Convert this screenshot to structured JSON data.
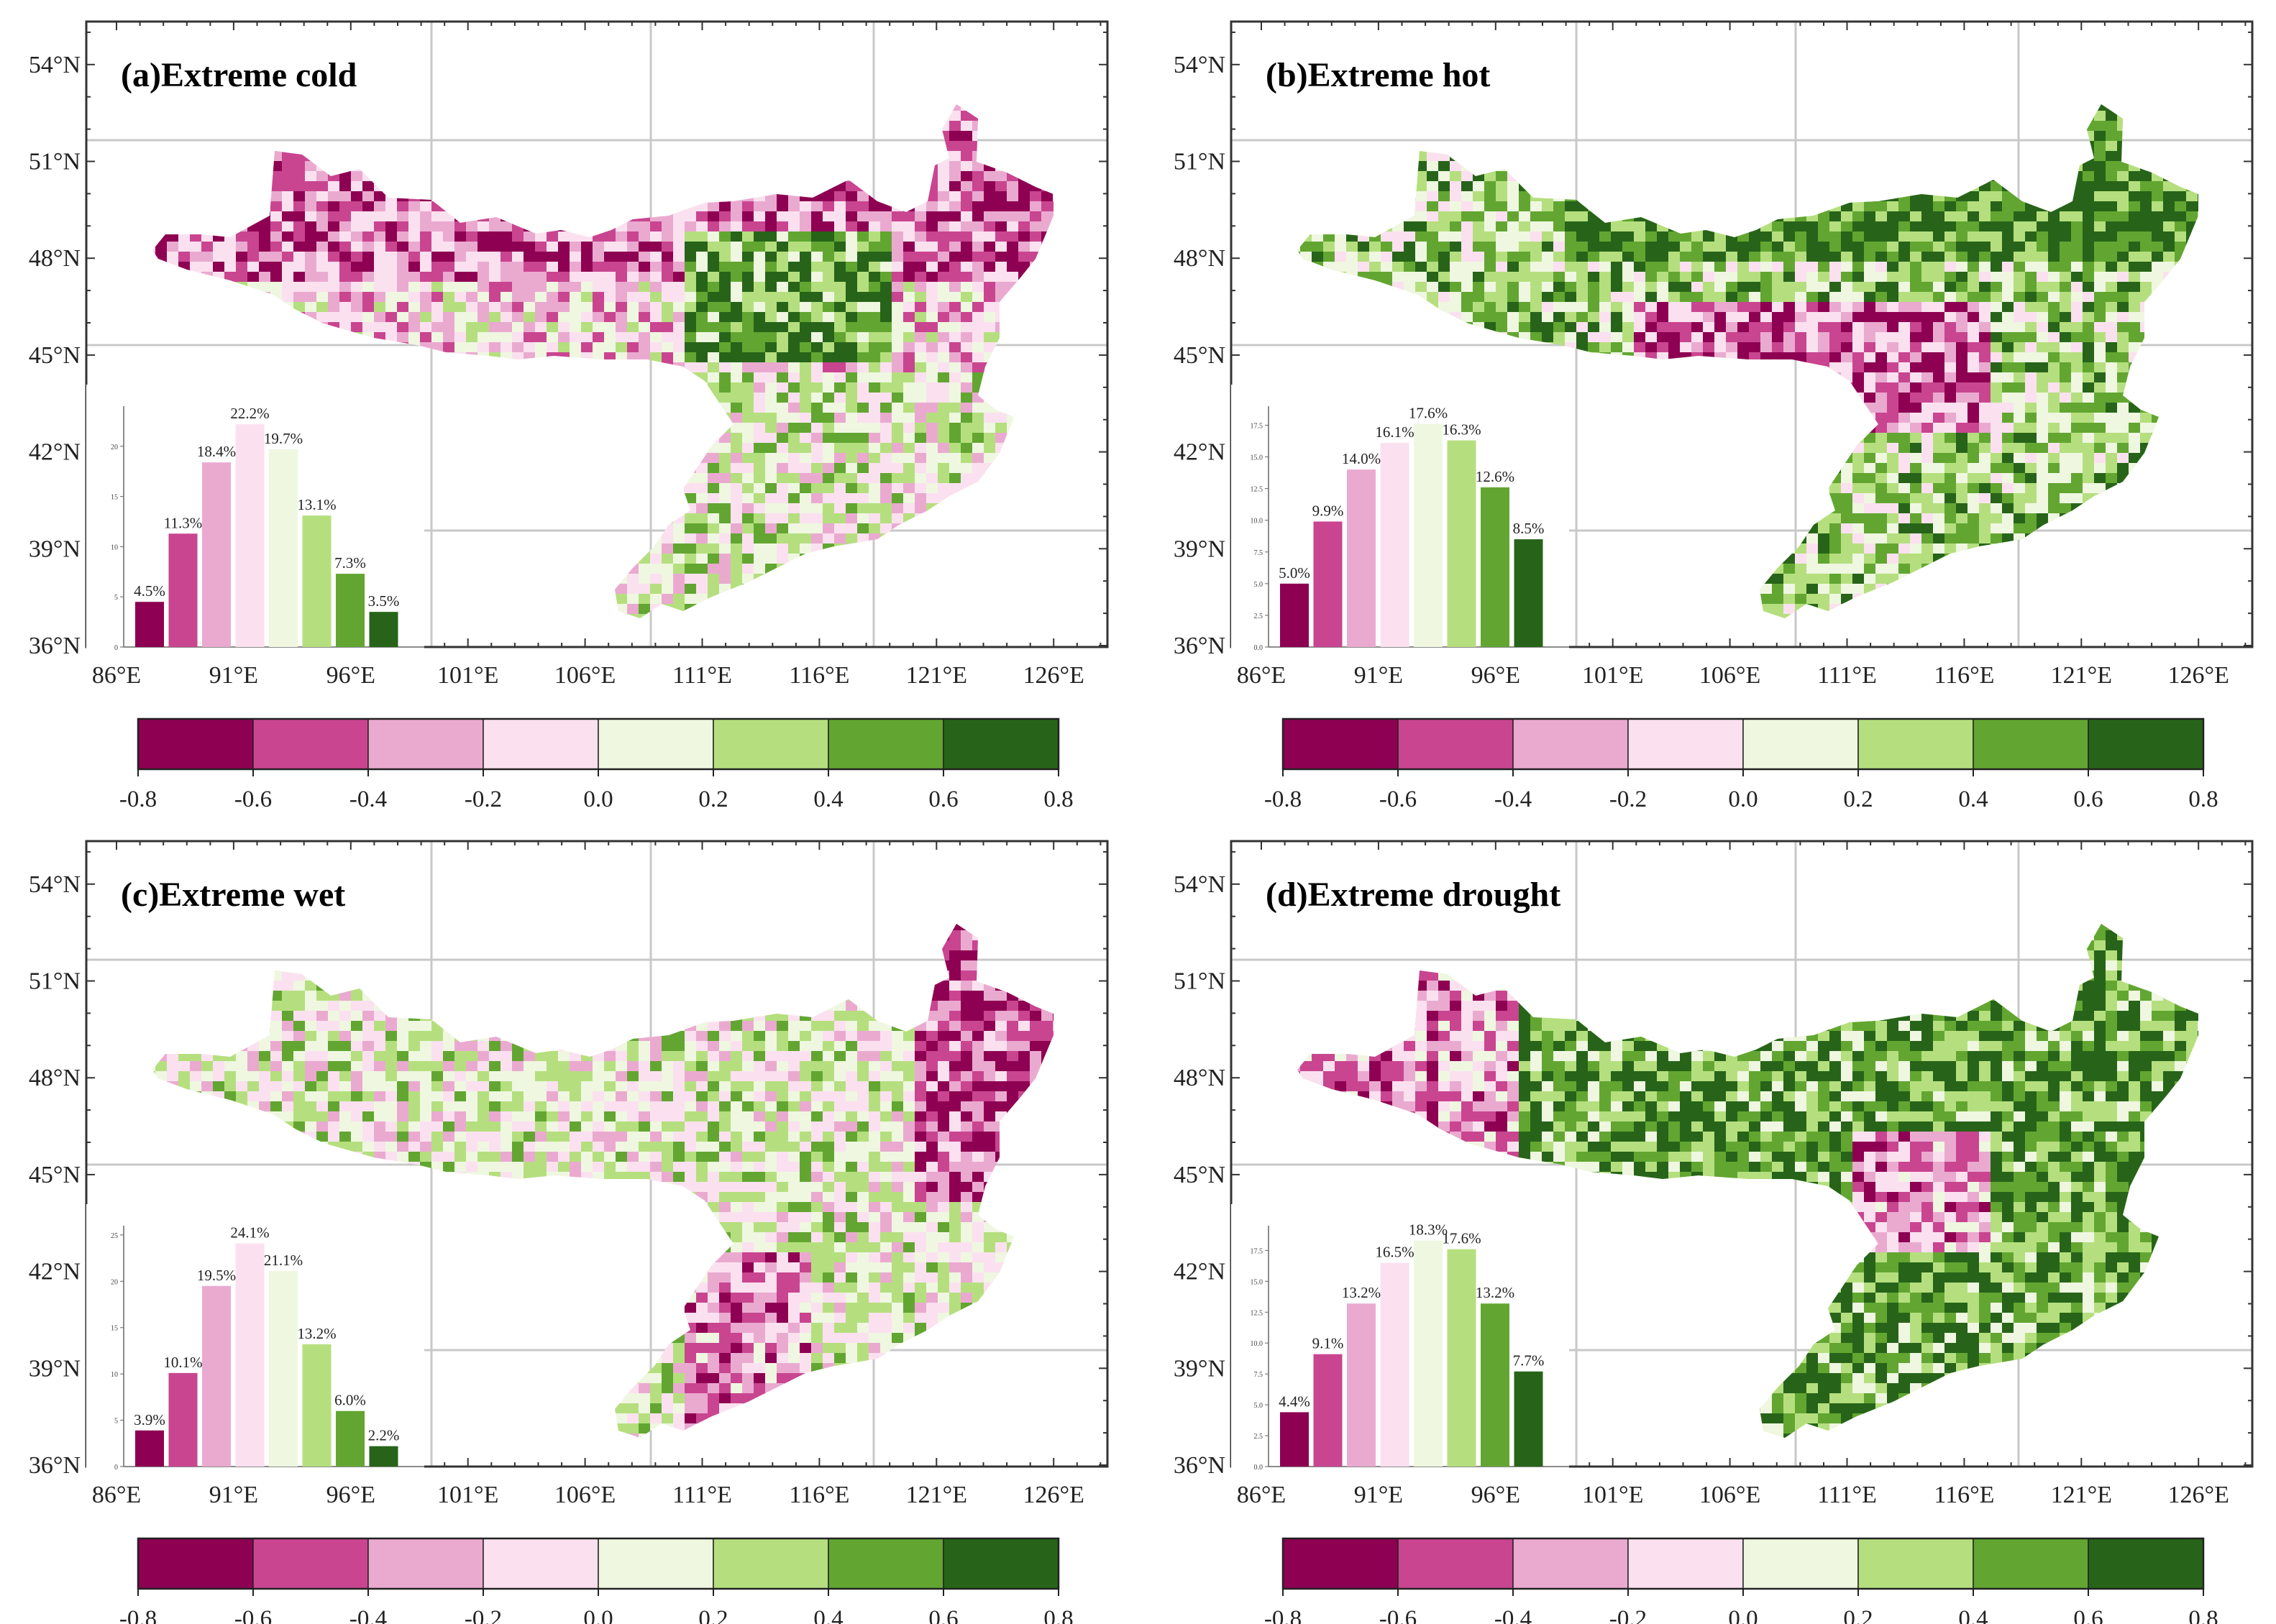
{
  "figure": {
    "lon_ticks": [
      "86°E",
      "91°E",
      "96°E",
      "101°E",
      "106°E",
      "111°E",
      "116°E",
      "121°E",
      "126°E"
    ],
    "lat_ticks": [
      "36°N",
      "39°N",
      "42°N",
      "45°N",
      "48°N",
      "51°N",
      "54°N"
    ],
    "colors": [
      "#8e0152",
      "#c94590",
      "#eaaad0",
      "#fbe1ef",
      "#eff7e1",
      "#b5df7e",
      "#62a631",
      "#276419"
    ],
    "colorbar_ticks": [
      "-0.8",
      "-0.6",
      "-0.4",
      "-0.2",
      "0.0",
      "0.2",
      "0.4",
      "0.6",
      "0.8"
    ]
  },
  "chart_data": [
    {
      "type": "bar",
      "title": "(a)Extreme cold",
      "labels": [
        "4.5%",
        "11.3%",
        "18.4%",
        "22.2%",
        "19.7%",
        "13.1%",
        "7.3%",
        "3.5%"
      ],
      "values": [
        4.5,
        11.3,
        18.4,
        22.2,
        19.7,
        13.1,
        7.3,
        3.5
      ],
      "ylim": [
        0,
        24
      ],
      "yticks": [
        "0",
        "5",
        "10",
        "15",
        "20"
      ]
    },
    {
      "type": "bar",
      "title": "(b)Extreme hot",
      "labels": [
        "5.0%",
        "9.9%",
        "14.0%",
        "16.1%",
        "17.6%",
        "16.3%",
        "12.6%",
        "8.5%"
      ],
      "values": [
        5.0,
        9.9,
        14.0,
        16.1,
        17.6,
        16.3,
        12.6,
        8.5
      ],
      "ylim": [
        0,
        19
      ],
      "yticks": [
        "0.0",
        "2.5",
        "5.0",
        "7.5",
        "10.0",
        "12.5",
        "15.0",
        "17.5"
      ]
    },
    {
      "type": "bar",
      "title": "(c)Extreme wet",
      "labels": [
        "3.9%",
        "10.1%",
        "19.5%",
        "24.1%",
        "21.1%",
        "13.2%",
        "6.0%",
        "2.2%"
      ],
      "values": [
        3.9,
        10.1,
        19.5,
        24.1,
        21.1,
        13.2,
        6.0,
        2.2
      ],
      "ylim": [
        0,
        26
      ],
      "yticks": [
        "0",
        "5",
        "10",
        "15",
        "20",
        "25"
      ]
    },
    {
      "type": "bar",
      "title": "(d)Extreme drought",
      "labels": [
        "4.4%",
        "9.1%",
        "13.2%",
        "16.5%",
        "18.3%",
        "17.6%",
        "13.2%",
        "7.7%"
      ],
      "values": [
        4.4,
        9.1,
        13.2,
        16.5,
        18.3,
        17.6,
        13.2,
        7.7
      ],
      "ylim": [
        0,
        19.5
      ],
      "yticks": [
        "0.0",
        "2.5",
        "5.0",
        "7.5",
        "10.0",
        "12.5",
        "15.0",
        "17.5"
      ]
    }
  ]
}
